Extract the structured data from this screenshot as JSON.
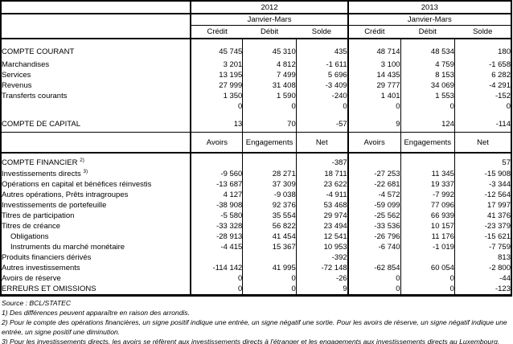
{
  "header": {
    "year_groups": [
      {
        "year": "2012",
        "period": "Janvier-Mars",
        "flow_cols": [
          "Crédit",
          "Débit",
          "Solde"
        ]
      },
      {
        "year": "2013",
        "period": "Janvier-Mars",
        "flow_cols": [
          "Crédit",
          "Débit",
          "Solde"
        ]
      }
    ],
    "stock_cols": [
      "Avoirs",
      "Engagements",
      "Net"
    ]
  },
  "current_section": {
    "rows": [
      {
        "label": "COMPTE COURANT",
        "values": [
          "45 745",
          "45 310",
          "435",
          "48 714",
          "48 534",
          "180"
        ]
      },
      {
        "label": "Marchandises",
        "values": [
          "3 201",
          "4 812",
          "-1 611",
          "3 100",
          "4 759",
          "-1 658"
        ]
      },
      {
        "label": "Services",
        "values": [
          "13 195",
          "7 499",
          "5 696",
          "14 435",
          "8 153",
          "6 282"
        ]
      },
      {
        "label": "Revenus",
        "values": [
          "27 999",
          "31 408",
          "-3 409",
          "29 777",
          "34 069",
          "-4 291"
        ]
      },
      {
        "label": "Transferts courants",
        "values": [
          "1 350",
          "1 590",
          "-240",
          "1 401",
          "1 553",
          "-152"
        ]
      },
      {
        "label": "",
        "values": [
          "0",
          "0",
          "0",
          "0",
          "0",
          "0"
        ]
      },
      {
        "label": "COMPTE DE CAPITAL",
        "gap_above": true,
        "values": [
          "13",
          "70",
          "-57",
          "9",
          "124",
          "-114"
        ]
      }
    ]
  },
  "financial_section": {
    "rows": [
      {
        "label": "COMPTE FINANCIER",
        "sup": "2)",
        "values": [
          "",
          "",
          "-387",
          "",
          "",
          "57"
        ]
      },
      {
        "label": "Investissements directs",
        "sup": "3)",
        "values": [
          "-9 560",
          "28 271",
          "18 711",
          "-27 253",
          "11 345",
          "-15 908"
        ]
      },
      {
        "label": "Opérations en capital et bénéfices réinvestis",
        "values": [
          "-13 687",
          "37 309",
          "23 622",
          "-22 681",
          "19 337",
          "-3 344"
        ]
      },
      {
        "label": "Autres opérations, Prêts intragroupes",
        "values": [
          "4 127",
          "-9 038",
          "-4 911",
          "-4 572",
          "-7 992",
          "-12 564"
        ]
      },
      {
        "label": "Investissements de portefeuille",
        "values": [
          "-38 908",
          "92 376",
          "53 468",
          "-59 099",
          "77 096",
          "17 997"
        ]
      },
      {
        "label": "Titres de participation",
        "values": [
          "-5 580",
          "35 554",
          "29 974",
          "-25 562",
          "66 939",
          "41 376"
        ]
      },
      {
        "label": "Titres de créance",
        "values": [
          "-33 328",
          "56 822",
          "23 494",
          "-33 536",
          "10 157",
          "-23 379"
        ]
      },
      {
        "label": "Obligations",
        "indent": 1,
        "values": [
          "-28 913",
          "41 454",
          "12 541",
          "-26 796",
          "11 176",
          "-15 621"
        ]
      },
      {
        "label": "Instruments du marché monétaire",
        "indent": 1,
        "values": [
          "-4 415",
          "15 367",
          "10 953",
          "-6 740",
          "-1 019",
          "-7 759"
        ]
      },
      {
        "label": "Produits financiers dérivés",
        "values": [
          "",
          "",
          "-392",
          "",
          "",
          "813"
        ]
      },
      {
        "label": "Autres investissements",
        "values": [
          "-114 142",
          "41 995",
          "-72 148",
          "-62 854",
          "60 054",
          "-2 800"
        ]
      },
      {
        "label": "Avoirs de réserve",
        "values": [
          "0",
          "0",
          "-26",
          "0",
          "0",
          "-44"
        ]
      },
      {
        "label": "ERREURS ET OMISSIONS",
        "values": [
          "0",
          "0",
          "9",
          "0",
          "0",
          "-123"
        ]
      }
    ]
  },
  "footnotes": {
    "source": "Source : BCL/STATEC",
    "notes": [
      "1) Des différences peuvent apparaître en raison des arrondis.",
      "2) Pour le compte des opérations financières, un signe positif indique une entrée, un signe négatif une sortie. Pour les avoirs de réserve, un signe négatif indique une entrée, un signe positif une diminution.",
      "3) Pour les investissements directs, les avoirs se réfèrent aux investissements directs à l'étranger et les engagements aux investissements directs au Luxembourg."
    ]
  }
}
